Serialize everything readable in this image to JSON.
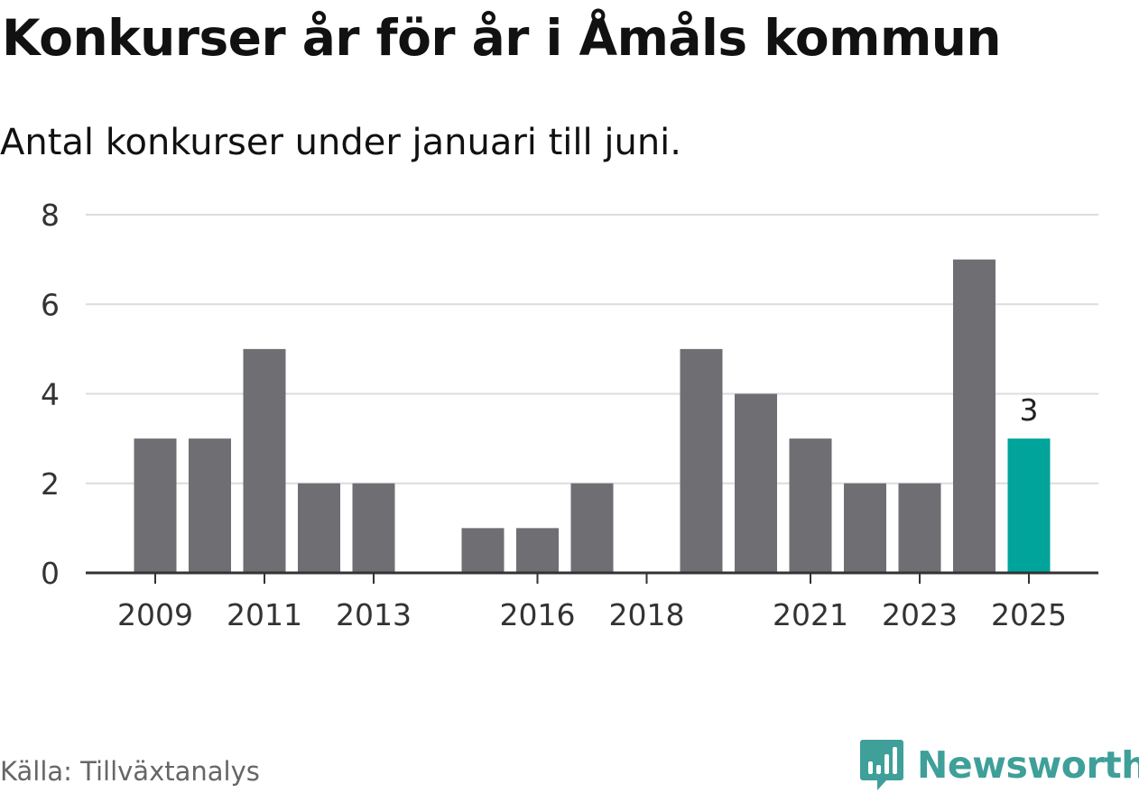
{
  "title": "Konkurser år för år i Åmåls kommun",
  "subtitle": "Antal konkurser under januari till juni.",
  "source": "Källa: Tillväxtanalys",
  "brand": {
    "name": "Newsworthy",
    "icon": "newsworthy-logo-icon",
    "color": "#3f9f99"
  },
  "chart_data": {
    "type": "bar",
    "x": [
      2009,
      2010,
      2011,
      2012,
      2013,
      2014,
      2015,
      2016,
      2017,
      2018,
      2019,
      2020,
      2021,
      2022,
      2023,
      2024,
      2025
    ],
    "values": [
      3,
      3,
      5,
      2,
      2,
      0,
      1,
      1,
      2,
      0,
      5,
      4,
      3,
      2,
      2,
      7,
      3
    ],
    "x_tick_labels": [
      "2009",
      "2011",
      "2013",
      "2016",
      "2018",
      "2021",
      "2023",
      "2025"
    ],
    "y_ticks": [
      0,
      2,
      4,
      6,
      8
    ],
    "ylim": [
      0,
      8
    ],
    "xlabel": "",
    "ylabel": "",
    "grid": true,
    "bar_color": "#6f6e73",
    "highlight": {
      "x": 2025,
      "color": "#00a49a",
      "label": "3"
    }
  }
}
